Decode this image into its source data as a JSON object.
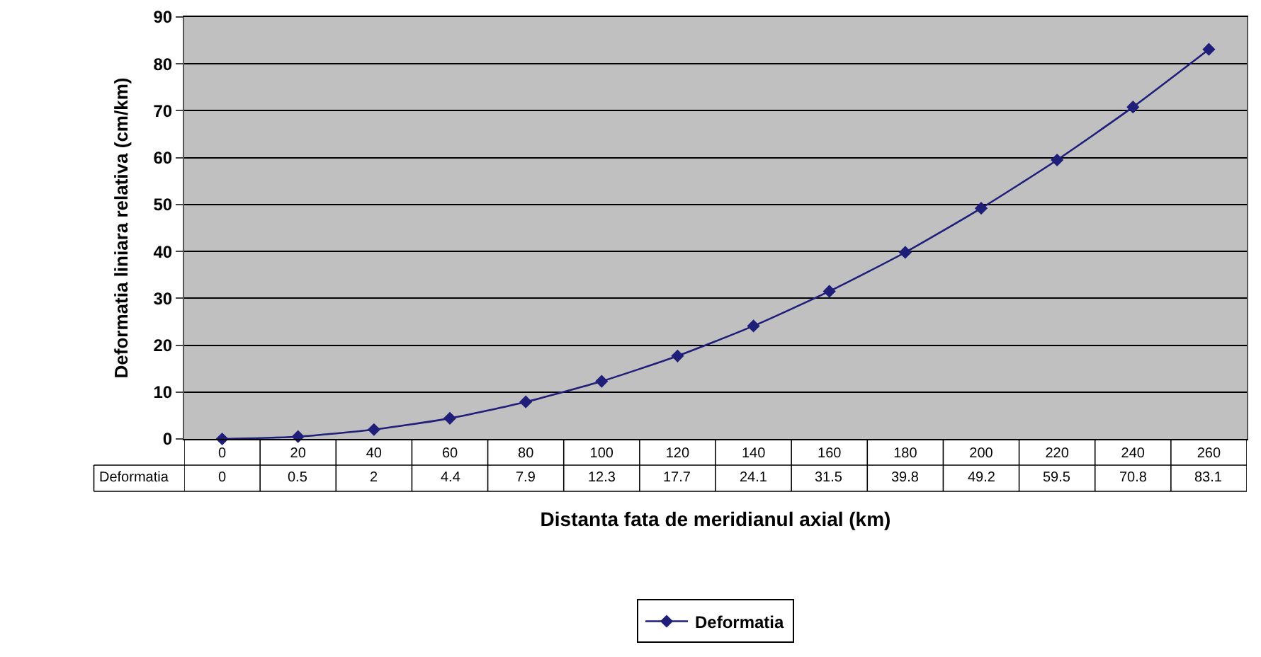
{
  "chart_data": {
    "type": "line",
    "xlabel": "Distanta fata de meridianul axial (km)",
    "ylabel": "Deformatia liniara relativa (cm/km)",
    "categories": [
      "0",
      "20",
      "40",
      "60",
      "80",
      "100",
      "120",
      "140",
      "160",
      "180",
      "200",
      "220",
      "240",
      "260"
    ],
    "series": [
      {
        "name": "Deformatia",
        "color": "#1f1f7a",
        "values": [
          0,
          0.5,
          2,
          4.4,
          7.9,
          12.3,
          17.7,
          24.1,
          31.5,
          39.8,
          49.2,
          59.5,
          70.8,
          83.1
        ]
      }
    ],
    "ylim": [
      0,
      90
    ],
    "yticks": [
      0,
      10,
      20,
      30,
      40,
      50,
      60,
      70,
      80,
      90
    ],
    "grid": "y",
    "legend": "bottom",
    "marker": "diamond",
    "line_style": "solid",
    "data_labels": true
  }
}
